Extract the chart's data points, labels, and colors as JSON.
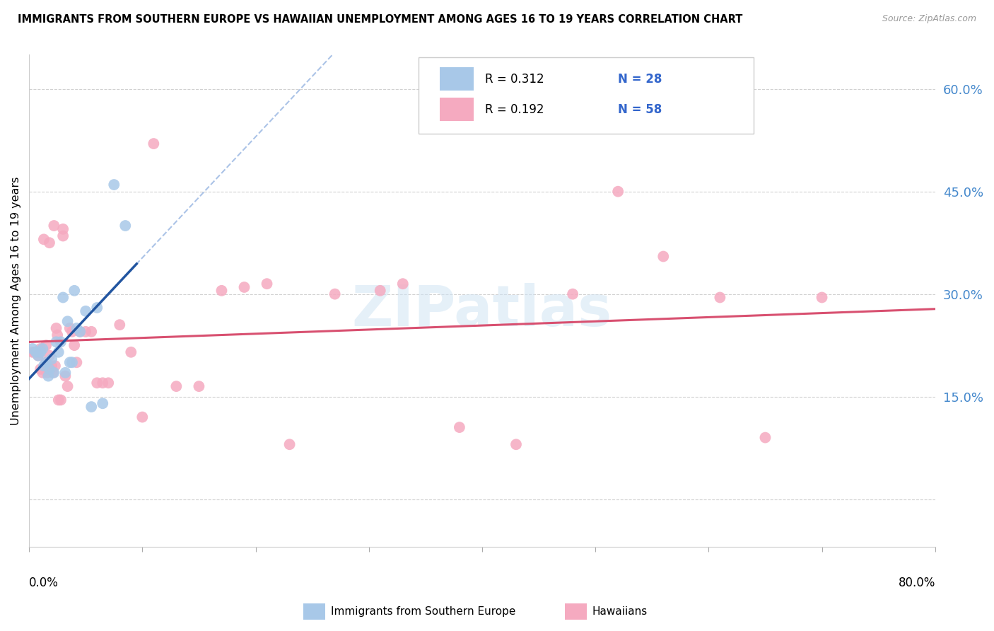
{
  "title": "IMMIGRANTS FROM SOUTHERN EUROPE VS HAWAIIAN UNEMPLOYMENT AMONG AGES 16 TO 19 YEARS CORRELATION CHART",
  "source": "Source: ZipAtlas.com",
  "ylabel": "Unemployment Among Ages 16 to 19 years",
  "xlim": [
    0.0,
    0.8
  ],
  "ylim": [
    -0.07,
    0.65
  ],
  "yticks": [
    0.0,
    0.15,
    0.3,
    0.45,
    0.6
  ],
  "ytick_labels": [
    "",
    "15.0%",
    "30.0%",
    "45.0%",
    "60.0%"
  ],
  "series1_color": "#a8c8e8",
  "series2_color": "#f5aac0",
  "series1_line_color": "#2255a0",
  "series2_line_color": "#d85070",
  "series1_dash_color": "#88aadd",
  "blue_x": [
    0.003,
    0.006,
    0.008,
    0.01,
    0.012,
    0.013,
    0.015,
    0.017,
    0.018,
    0.02,
    0.022,
    0.024,
    0.026,
    0.028,
    0.03,
    0.032,
    0.034,
    0.036,
    0.038,
    0.04,
    0.042,
    0.045,
    0.05,
    0.055,
    0.06,
    0.065,
    0.075,
    0.085
  ],
  "blue_y": [
    0.22,
    0.215,
    0.21,
    0.215,
    0.22,
    0.195,
    0.2,
    0.18,
    0.19,
    0.205,
    0.185,
    0.23,
    0.215,
    0.23,
    0.295,
    0.185,
    0.26,
    0.2,
    0.2,
    0.305,
    0.25,
    0.245,
    0.275,
    0.135,
    0.28,
    0.14,
    0.46,
    0.4
  ],
  "pink_x": [
    0.003,
    0.005,
    0.007,
    0.008,
    0.01,
    0.01,
    0.012,
    0.013,
    0.014,
    0.015,
    0.015,
    0.016,
    0.018,
    0.018,
    0.019,
    0.02,
    0.021,
    0.022,
    0.023,
    0.024,
    0.025,
    0.026,
    0.028,
    0.03,
    0.03,
    0.032,
    0.034,
    0.036,
    0.038,
    0.04,
    0.042,
    0.045,
    0.05,
    0.055,
    0.06,
    0.065,
    0.07,
    0.08,
    0.09,
    0.1,
    0.11,
    0.13,
    0.15,
    0.17,
    0.19,
    0.21,
    0.23,
    0.27,
    0.31,
    0.33,
    0.38,
    0.43,
    0.48,
    0.52,
    0.56,
    0.61,
    0.65,
    0.7
  ],
  "pink_y": [
    0.215,
    0.215,
    0.215,
    0.21,
    0.22,
    0.19,
    0.185,
    0.38,
    0.195,
    0.225,
    0.2,
    0.185,
    0.21,
    0.375,
    0.19,
    0.195,
    0.185,
    0.4,
    0.195,
    0.25,
    0.24,
    0.145,
    0.145,
    0.395,
    0.385,
    0.18,
    0.165,
    0.25,
    0.245,
    0.225,
    0.2,
    0.245,
    0.245,
    0.245,
    0.17,
    0.17,
    0.17,
    0.255,
    0.215,
    0.12,
    0.52,
    0.165,
    0.165,
    0.305,
    0.31,
    0.315,
    0.08,
    0.3,
    0.305,
    0.315,
    0.105,
    0.08,
    0.3,
    0.45,
    0.355,
    0.295,
    0.09,
    0.295
  ]
}
